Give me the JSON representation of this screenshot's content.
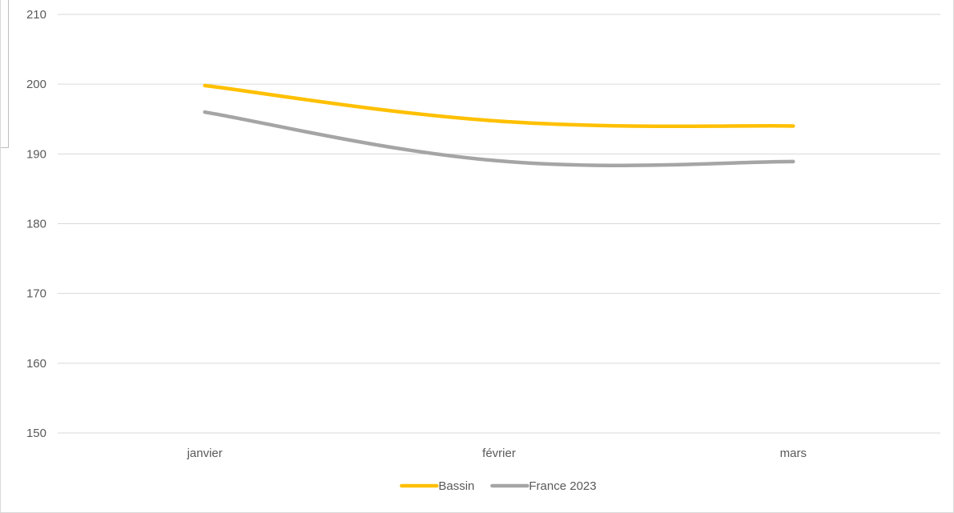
{
  "chart_data": {
    "type": "line",
    "title": "",
    "xlabel": "",
    "ylabel": "",
    "categories": [
      "janvier",
      "février",
      "mars"
    ],
    "ylim": [
      150,
      210
    ],
    "yticks": [
      150,
      160,
      170,
      180,
      190,
      200,
      210
    ],
    "grid": true,
    "legend_position": "bottom",
    "smooth": true,
    "series": [
      {
        "name": "Bassin",
        "values": [
          199.8,
          194.7,
          194.0
        ],
        "color": "#ffc000"
      },
      {
        "name": "France 2023",
        "values": [
          196.0,
          189.0,
          188.9
        ],
        "color": "#a5a5a5"
      }
    ]
  }
}
